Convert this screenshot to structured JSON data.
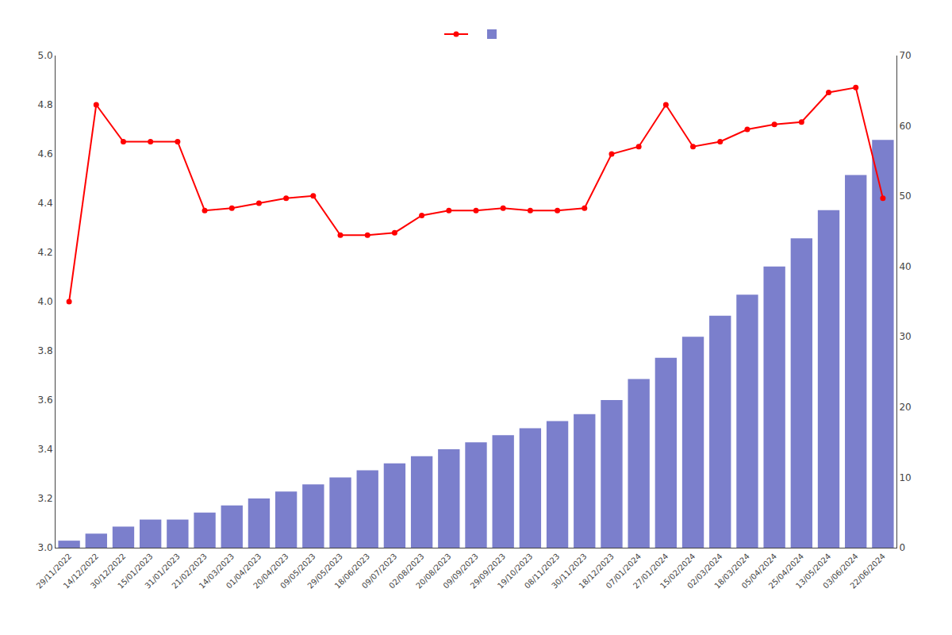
{
  "chart_data": {
    "type": "bar",
    "categories": [
      "29/11/2022",
      "14/12/2022",
      "30/12/2022",
      "15/01/2023",
      "31/01/2023",
      "21/02/2023",
      "14/03/2023",
      "01/04/2023",
      "20/04/2023",
      "09/05/2023",
      "29/05/2023",
      "18/06/2023",
      "09/07/2023",
      "02/08/2023",
      "20/08/2023",
      "09/09/2023",
      "29/09/2023",
      "19/10/2023",
      "08/11/2023",
      "30/11/2023",
      "18/12/2023",
      "07/01/2024",
      "27/01/2024",
      "15/02/2024",
      "02/03/2024",
      "18/03/2024",
      "05/04/2024",
      "25/04/2024",
      "13/05/2024",
      "03/06/2024",
      "22/06/2024"
    ],
    "series": [
      {
        "type": "line",
        "color": "#ff0000",
        "marker": "circle",
        "line_style": "solid",
        "axis": "y",
        "values": [
          4.0,
          4.8,
          4.65,
          4.65,
          4.65,
          4.37,
          4.38,
          4.4,
          4.42,
          4.43,
          4.27,
          4.27,
          4.28,
          4.35,
          4.37,
          4.37,
          4.38,
          4.37,
          4.37,
          4.38,
          4.6,
          4.63,
          4.8,
          4.63,
          4.65,
          4.7,
          4.72,
          4.73,
          4.85,
          4.87,
          4.42
        ]
      },
      {
        "type": "bar",
        "color": "#7b7fcc",
        "axis": "y2",
        "values": [
          1,
          2,
          3,
          4,
          4,
          5,
          6,
          7,
          8,
          9,
          10,
          11,
          12,
          13,
          14,
          15,
          16,
          17,
          18,
          19,
          21,
          24,
          27,
          30,
          33,
          36,
          40,
          44,
          48,
          53,
          58
        ]
      }
    ],
    "ylim": [
      3.0,
      5.0
    ],
    "yticks": [
      {
        "value": 3.0,
        "label": "3.0"
      },
      3.2,
      3.4,
      3.6,
      3.8,
      {
        "value": 4.0,
        "label": "4.0"
      },
      4.2,
      4.4,
      4.6,
      4.8,
      {
        "value": 5.0,
        "label": "5.0"
      }
    ],
    "y2lim": [
      0,
      70
    ],
    "y2ticks": [
      0,
      10,
      20,
      30,
      40,
      50,
      60,
      70
    ],
    "grid": false,
    "legend": "top"
  }
}
